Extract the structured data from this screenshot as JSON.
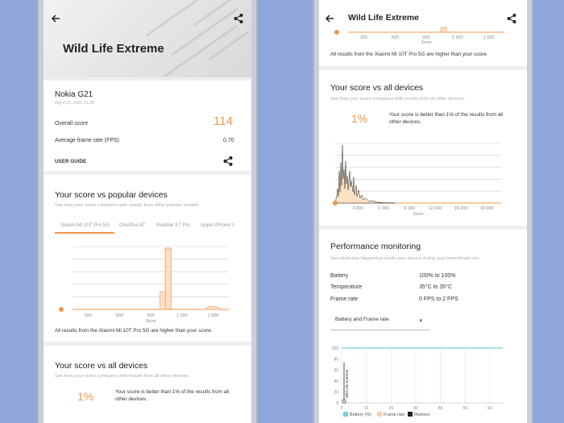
{
  "left": {
    "title": "Wild Life Extreme",
    "device": {
      "name": "Nokia G21",
      "date": "ēvg 4 21, 2022 21:28"
    },
    "overall_score_label": "Overall score",
    "overall_score_value": "114",
    "avg_fps_label": "Average frame rate (FPS)",
    "avg_fps_value": "0.70",
    "user_guide_label": "USER GUIDE",
    "popular": {
      "title": "Your score vs popular devices",
      "desc": "See how your score compares with results from other popular models.",
      "tabs": [
        "Xiaomi Mi 10T Pro 5G",
        "OnePlus 8T",
        "Realme X7 Pro",
        "Apple iPhone 1"
      ],
      "footnote": "All results from the Xiaomi Mi 10T Pro 5G are higher than your score."
    },
    "all_devices": {
      "title": "Your score vs all devices",
      "desc": "See how your score compares with results from all other devices.",
      "percent": "1%",
      "text": "Your score is better than 1% of the results from all other devices."
    }
  },
  "right": {
    "title": "Wild Life Extreme",
    "footnote": "All results from the Xiaomi Mi 10T Pro 5G are higher than your score.",
    "all_devices": {
      "title": "Your score vs all devices",
      "desc": "See how your score compares with results from all other devices.",
      "percent": "1%",
      "text": "Your score is better than 1% of the results from all other devices."
    },
    "perf": {
      "title": "Performance monitoring",
      "desc": "See what was happening inside your device during your benchmark run.",
      "rows": [
        {
          "label": "Battery",
          "value": "100% to 100%"
        },
        {
          "label": "Temperature",
          "value": "35°C to 35°C"
        },
        {
          "label": "Frame rate",
          "value": "0 FPS to 2 FPS"
        }
      ],
      "dropdown_value": "Battery and Frame rate",
      "legend": [
        "Battery (%)",
        "Frame rate",
        "Markers"
      ],
      "rotated_label": "Wild Life Extreme"
    }
  },
  "colors": {
    "accent": "#f0954a",
    "battery_line": "#6fd3d6",
    "background": "#8fa7d9"
  },
  "chart_data": [
    {
      "type": "area",
      "name": "popular-devices-distribution",
      "x": [
        300,
        600,
        900,
        1200,
        1500
      ],
      "tick_labels": [
        "300",
        "600",
        "900",
        "1 200",
        "1 500"
      ],
      "xlabel": "Score",
      "peaks": [
        {
          "x": 1070,
          "height": 1.0
        },
        {
          "x": 1500,
          "height": 0.05
        }
      ],
      "your_score": 114
    },
    {
      "type": "area",
      "name": "all-devices-distribution",
      "tick_labels": [
        "3 000",
        "6 000",
        "9 000",
        "12 000",
        "15 000",
        "18 000"
      ],
      "xlabel": "Score",
      "your_score": 114
    },
    {
      "type": "line",
      "name": "battery-and-frame-rate",
      "x_ticks": [
        0,
        10,
        20,
        30,
        40,
        50,
        60
      ],
      "y_ticks": [
        0,
        20,
        40,
        60,
        80,
        100
      ],
      "series": [
        {
          "name": "Battery (%)",
          "values": [
            100,
            100,
            100,
            100,
            100,
            100,
            100
          ]
        },
        {
          "name": "Frame rate",
          "values": [
            0,
            1,
            2,
            1,
            1,
            2,
            1
          ]
        }
      ]
    }
  ]
}
